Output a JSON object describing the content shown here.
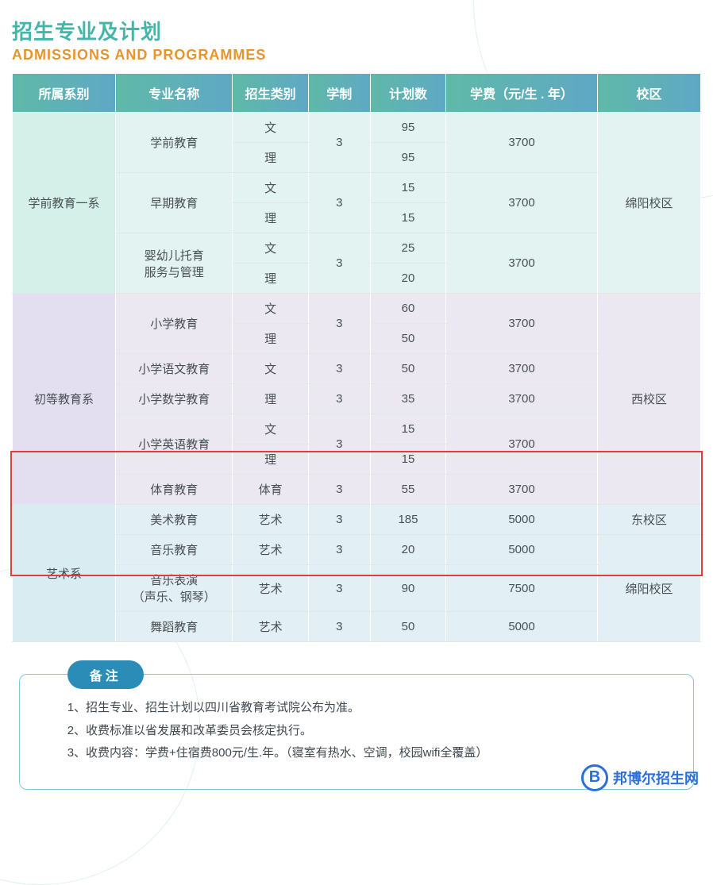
{
  "title_cn": "招生专业及计划",
  "title_en": "ADMISSIONS AND PROGRAMMES",
  "table": {
    "columns": [
      "所属系别",
      "专业名称",
      "招生类别",
      "学制",
      "计划数",
      "学费（元/生 . 年）",
      "校区"
    ],
    "col_widths_pct": [
      15,
      17,
      11,
      9,
      11,
      22,
      15
    ],
    "header_gradient_from": "#5fb9a8",
    "header_gradient_to": "#5fa8c5",
    "header_text_color": "#ffffff",
    "cell_text_color": "#495055",
    "sections": [
      {
        "bg": "#e2f3f1",
        "dept_bg": "#d5efe9",
        "dept": "学前教育一系",
        "campus": "绵阳校区",
        "majors": [
          {
            "name": "学前教育",
            "duration": "3",
            "tuition": "3700",
            "rows": [
              {
                "category": "文",
                "plan": "95"
              },
              {
                "category": "理",
                "plan": "95"
              }
            ]
          },
          {
            "name": "早期教育",
            "duration": "3",
            "tuition": "3700",
            "rows": [
              {
                "category": "文",
                "plan": "15"
              },
              {
                "category": "理",
                "plan": "15"
              }
            ]
          },
          {
            "name": "婴幼儿托育\n服务与管理",
            "duration": "3",
            "tuition": "3700",
            "rows": [
              {
                "category": "文",
                "plan": "25"
              },
              {
                "category": "理",
                "plan": "20"
              }
            ]
          }
        ]
      },
      {
        "bg": "#ece8f2",
        "dept_bg": "#e3def0",
        "dept": "初等教育系",
        "campus": "西校区",
        "majors": [
          {
            "name": "小学教育",
            "duration": "3",
            "tuition": "3700",
            "rows": [
              {
                "category": "文",
                "plan": "60"
              },
              {
                "category": "理",
                "plan": "50"
              }
            ]
          },
          {
            "name": "小学语文教育",
            "duration": "3",
            "tuition": "3700",
            "rows": [
              {
                "category": "文",
                "plan": "50"
              }
            ]
          },
          {
            "name": "小学数学教育",
            "duration": "3",
            "tuition": "3700",
            "rows": [
              {
                "category": "理",
                "plan": "35"
              }
            ]
          },
          {
            "name": "小学英语教育",
            "duration": "3",
            "tuition": "3700",
            "rows": [
              {
                "category": "文",
                "plan": "15"
              },
              {
                "category": "理",
                "plan": "15"
              }
            ]
          },
          {
            "name": "体育教育",
            "duration": "3",
            "tuition": "3700",
            "rows": [
              {
                "category": "体育",
                "plan": "55"
              }
            ]
          }
        ]
      },
      {
        "bg": "#e2eff4",
        "dept_bg": "#d9ecf2",
        "dept": "艺术系",
        "campus_split": true,
        "campus1": "东校区",
        "campus1_rows": 1,
        "campus2": "绵阳校区",
        "campus2_rows": 3,
        "majors": [
          {
            "name": "美术教育",
            "duration": "3",
            "tuition": "5000",
            "rows": [
              {
                "category": "艺术",
                "plan": "185"
              }
            ]
          },
          {
            "name": "音乐教育",
            "duration": "3",
            "tuition": "5000",
            "rows": [
              {
                "category": "艺术",
                "plan": "20"
              }
            ]
          },
          {
            "name": "音乐表演\n（声乐、钢琴）",
            "duration": "3",
            "tuition": "7500",
            "rows": [
              {
                "category": "艺术",
                "plan": "90"
              }
            ]
          },
          {
            "name": "舞蹈教育",
            "duration": "3",
            "tuition": "5000",
            "rows": [
              {
                "category": "艺术",
                "plan": "50"
              }
            ]
          }
        ]
      }
    ]
  },
  "highlight": {
    "border_color": "#e23b3b"
  },
  "notes": {
    "tab_label": "备注",
    "tab_bg": "#2a8cb7",
    "border_color": "#7fc9d6",
    "lines": [
      "1、招生专业、招生计划以四川省教育考试院公布为准。",
      "2、收费标准以省发展和改革委员会核定执行。",
      "3、收费内容：学费+住宿费800元/生.年。（寝室有热水、空调，校园wifi全覆盖）"
    ]
  },
  "watermark": {
    "badge": "B",
    "text": "邦博尔招生网",
    "color": "#2a6fdc"
  }
}
